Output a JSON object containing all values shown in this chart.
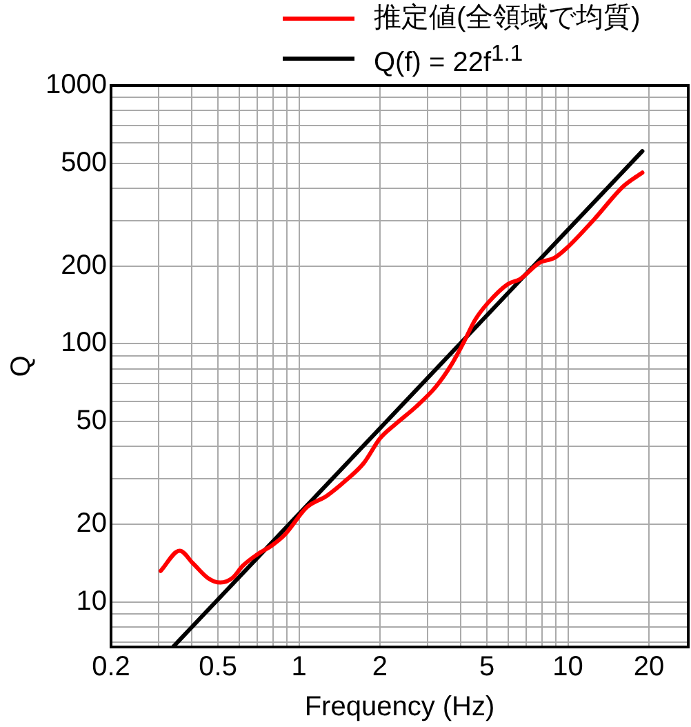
{
  "chart_data": {
    "type": "line",
    "xlabel": "Frequency (Hz)",
    "ylabel": "Q",
    "log": "xy",
    "grid": true,
    "legend": "top",
    "marker": "none",
    "line_style": "solid",
    "xlim": [
      0.2,
      28
    ],
    "ylim": [
      6.7,
      1000
    ],
    "xticks": [
      0.2,
      {
        "value": 0.3,
        "label": null
      },
      {
        "value": 0.4,
        "label": null
      },
      0.5,
      {
        "value": 0.6,
        "label": null
      },
      {
        "value": 0.7,
        "label": null
      },
      {
        "value": 0.8,
        "label": null
      },
      {
        "value": 0.9,
        "label": null
      },
      1,
      2,
      {
        "value": 3,
        "label": null
      },
      {
        "value": 4,
        "label": null
      },
      5,
      {
        "value": 6,
        "label": null
      },
      {
        "value": 7,
        "label": null
      },
      {
        "value": 8,
        "label": null
      },
      {
        "value": 9,
        "label": null
      },
      10,
      20
    ],
    "yticks": [
      {
        "value": 7,
        "label": null
      },
      {
        "value": 8,
        "label": null
      },
      {
        "value": 9,
        "label": null
      },
      10,
      20,
      {
        "value": 30,
        "label": null
      },
      {
        "value": 40,
        "label": null
      },
      50,
      {
        "value": 60,
        "label": null
      },
      {
        "value": 70,
        "label": null
      },
      {
        "value": 80,
        "label": null
      },
      {
        "value": 90,
        "label": null
      },
      100,
      200,
      {
        "value": 300,
        "label": null
      },
      {
        "value": 400,
        "label": null
      },
      500,
      {
        "value": 600,
        "label": null
      },
      {
        "value": 700,
        "label": null
      },
      {
        "value": 800,
        "label": null
      },
      {
        "value": 900,
        "label": null
      },
      1000
    ],
    "series": [
      {
        "name": "推定値(全領域で均質)",
        "color": "#ff0000",
        "x": [
          0.306,
          0.36,
          0.404,
          0.458,
          0.51,
          0.566,
          0.617,
          0.7,
          0.795,
          0.884,
          1.07,
          1.27,
          1.5,
          1.74,
          2.0,
          2.29,
          2.72,
          3.22,
          3.66,
          4.07,
          4.52,
          5.04,
          5.96,
          6.63,
          7.84,
          8.9,
          9.9,
          12.5,
          16.1,
          18.9
        ],
        "values": [
          13.2,
          15.8,
          14.1,
          12.4,
          11.9,
          12.4,
          13.8,
          15.3,
          16.6,
          18.2,
          23.3,
          25.8,
          29.7,
          34.5,
          43,
          49,
          57,
          68,
          82,
          100,
          124,
          144,
          170,
          178,
          206,
          215,
          235,
          303,
          408,
          460
        ]
      },
      {
        "name": "Q(f) = 22f$^{1.1}$",
        "color": "#000000",
        "x": [
          0.34,
          18.9
        ],
        "values": [
          6.7,
          557
        ]
      }
    ]
  }
}
